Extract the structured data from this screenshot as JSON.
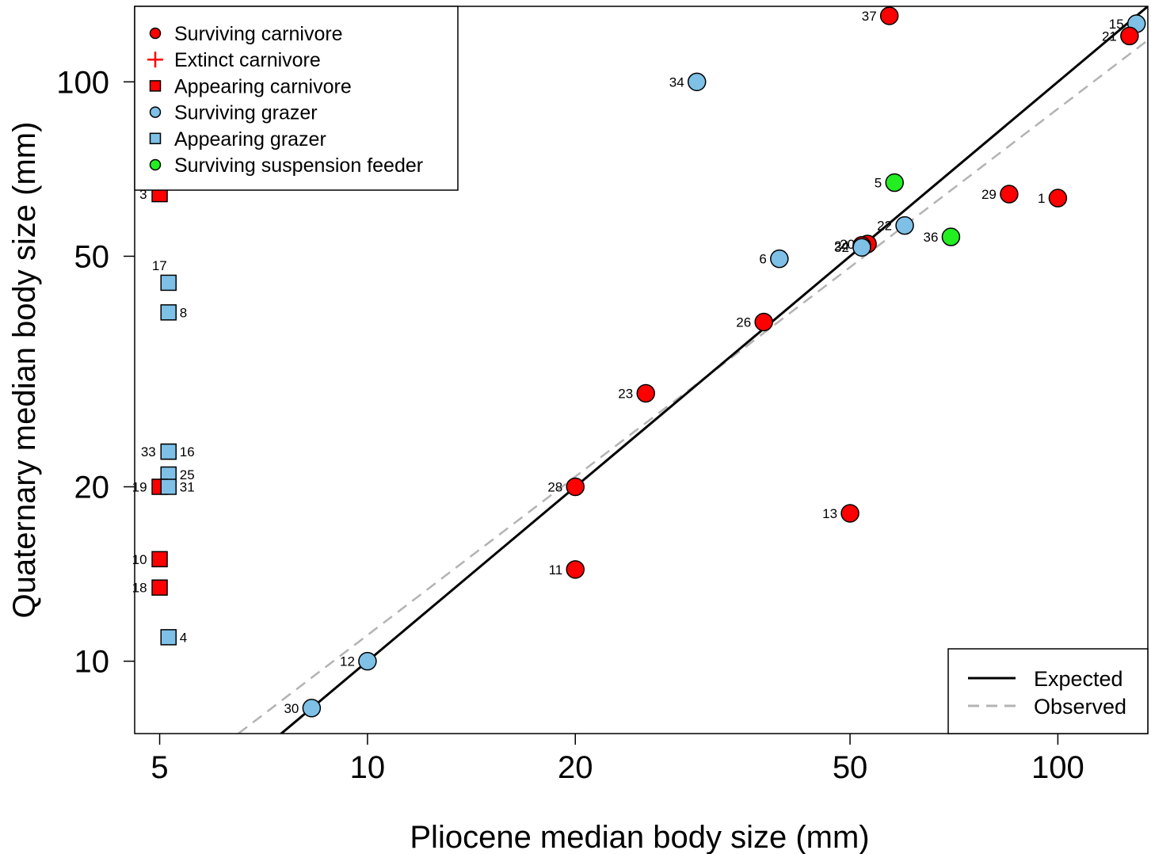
{
  "chart_data": {
    "type": "scatter",
    "xlabel": "Pliocene median body size (mm)",
    "ylabel": "Quaternary median body size (mm)",
    "x_scale": "log",
    "y_scale": "log",
    "xlim": [
      4.6,
      135
    ],
    "ylim": [
      7.5,
      135
    ],
    "x_ticks": [
      5,
      10,
      20,
      50,
      100
    ],
    "y_ticks": [
      10,
      20,
      50,
      100
    ],
    "grid": false,
    "legend_position": "top-left",
    "groups": {
      "surv_carn": {
        "name": "Surviving carnivore",
        "shape": "circle",
        "color": "#ff0000"
      },
      "ext_carn": {
        "name": "Extinct carnivore",
        "shape": "plus",
        "color": "#ff0000"
      },
      "app_carn": {
        "name": "Appearing carnivore",
        "shape": "square",
        "color": "#ff0000"
      },
      "surv_graz": {
        "name": "Surviving grazer",
        "shape": "circle",
        "color": "#7ec0e6"
      },
      "app_graz": {
        "name": "Appearing grazer",
        "shape": "square",
        "color": "#7ec0e6"
      },
      "surv_susp": {
        "name": "Surviving suspension feeder",
        "shape": "circle",
        "color": "#22ee22"
      }
    },
    "legend_order": [
      "surv_carn",
      "ext_carn",
      "app_carn",
      "surv_graz",
      "app_graz",
      "surv_susp"
    ],
    "points": [
      {
        "label": "3",
        "group": "app_carn",
        "x": 5.0,
        "y": 64,
        "lpos": "left"
      },
      {
        "label": "17",
        "group": "app_graz",
        "x": 5.15,
        "y": 45,
        "lpos": "topleft"
      },
      {
        "label": "8",
        "group": "app_graz",
        "x": 5.15,
        "y": 40,
        "lpos": "right"
      },
      {
        "label": "33",
        "group": "app_graz",
        "x": 5.15,
        "y": 23,
        "lpos": "left"
      },
      {
        "label": "16",
        "group": "app_graz",
        "x": 5.15,
        "y": 23,
        "lpos": "right"
      },
      {
        "label": "25",
        "group": "app_graz",
        "x": 5.15,
        "y": 21,
        "lpos": "right"
      },
      {
        "label": "19",
        "group": "app_carn",
        "x": 5.0,
        "y": 20,
        "lpos": "left"
      },
      {
        "label": "31",
        "group": "app_graz",
        "x": 5.15,
        "y": 20,
        "lpos": "right"
      },
      {
        "label": "10",
        "group": "app_carn",
        "x": 5.0,
        "y": 15,
        "lpos": "left"
      },
      {
        "label": "18",
        "group": "app_carn",
        "x": 5.0,
        "y": 13.4,
        "lpos": "left"
      },
      {
        "label": "4",
        "group": "app_graz",
        "x": 5.15,
        "y": 11,
        "lpos": "right"
      },
      {
        "label": "37",
        "group": "surv_carn",
        "x": 57,
        "y": 130,
        "lpos": "left"
      },
      {
        "label": "34",
        "group": "surv_graz",
        "x": 30,
        "y": 100,
        "lpos": "left"
      },
      {
        "label": "15",
        "group": "surv_graz",
        "x": 130,
        "y": 126,
        "lpos": "left"
      },
      {
        "label": "21",
        "group": "surv_carn",
        "x": 127,
        "y": 120,
        "lpos": "left"
      },
      {
        "label": "5",
        "group": "surv_susp",
        "x": 58,
        "y": 67,
        "lpos": "left"
      },
      {
        "label": "29",
        "group": "surv_carn",
        "x": 85,
        "y": 64,
        "lpos": "left"
      },
      {
        "label": "1",
        "group": "surv_carn",
        "x": 100,
        "y": 63,
        "lpos": "left"
      },
      {
        "label": "22",
        "group": "surv_graz",
        "x": 60,
        "y": 56.5,
        "lpos": "left"
      },
      {
        "label": "20",
        "group": "surv_carn",
        "x": 53,
        "y": 52.5,
        "lpos": "left"
      },
      {
        "label": "24",
        "group": "surv_carn",
        "x": 52,
        "y": 52.2,
        "lpos": "left"
      },
      {
        "label": "32",
        "group": "surv_graz",
        "x": 52,
        "y": 51.8,
        "lpos": "left"
      },
      {
        "label": "36",
        "group": "surv_susp",
        "x": 70,
        "y": 54,
        "lpos": "left"
      },
      {
        "label": "6",
        "group": "surv_graz",
        "x": 39.5,
        "y": 49.5,
        "lpos": "left"
      },
      {
        "label": "26",
        "group": "surv_carn",
        "x": 37.5,
        "y": 38.5,
        "lpos": "left"
      },
      {
        "label": "23",
        "group": "surv_carn",
        "x": 25.3,
        "y": 29,
        "lpos": "left"
      },
      {
        "label": "28",
        "group": "surv_carn",
        "x": 20,
        "y": 20,
        "lpos": "left"
      },
      {
        "label": "13",
        "group": "surv_carn",
        "x": 50,
        "y": 18,
        "lpos": "left"
      },
      {
        "label": "11",
        "group": "surv_carn",
        "x": 20,
        "y": 14.4,
        "lpos": "left"
      },
      {
        "label": "12",
        "group": "surv_graz",
        "x": 10,
        "y": 10,
        "lpos": "left"
      },
      {
        "label": "30",
        "group": "surv_graz",
        "x": 8.3,
        "y": 8.3,
        "lpos": "left"
      }
    ],
    "lines": [
      {
        "name": "Expected",
        "style": "solid",
        "color": "#000000",
        "x": [
          7.4,
          135
        ],
        "y": [
          7.4,
          135
        ]
      },
      {
        "name": "Observed",
        "style": "dashed",
        "color": "#b3b3b3",
        "x": [
          6.5,
          135
        ],
        "y": [
          7.5,
          118
        ]
      }
    ]
  }
}
